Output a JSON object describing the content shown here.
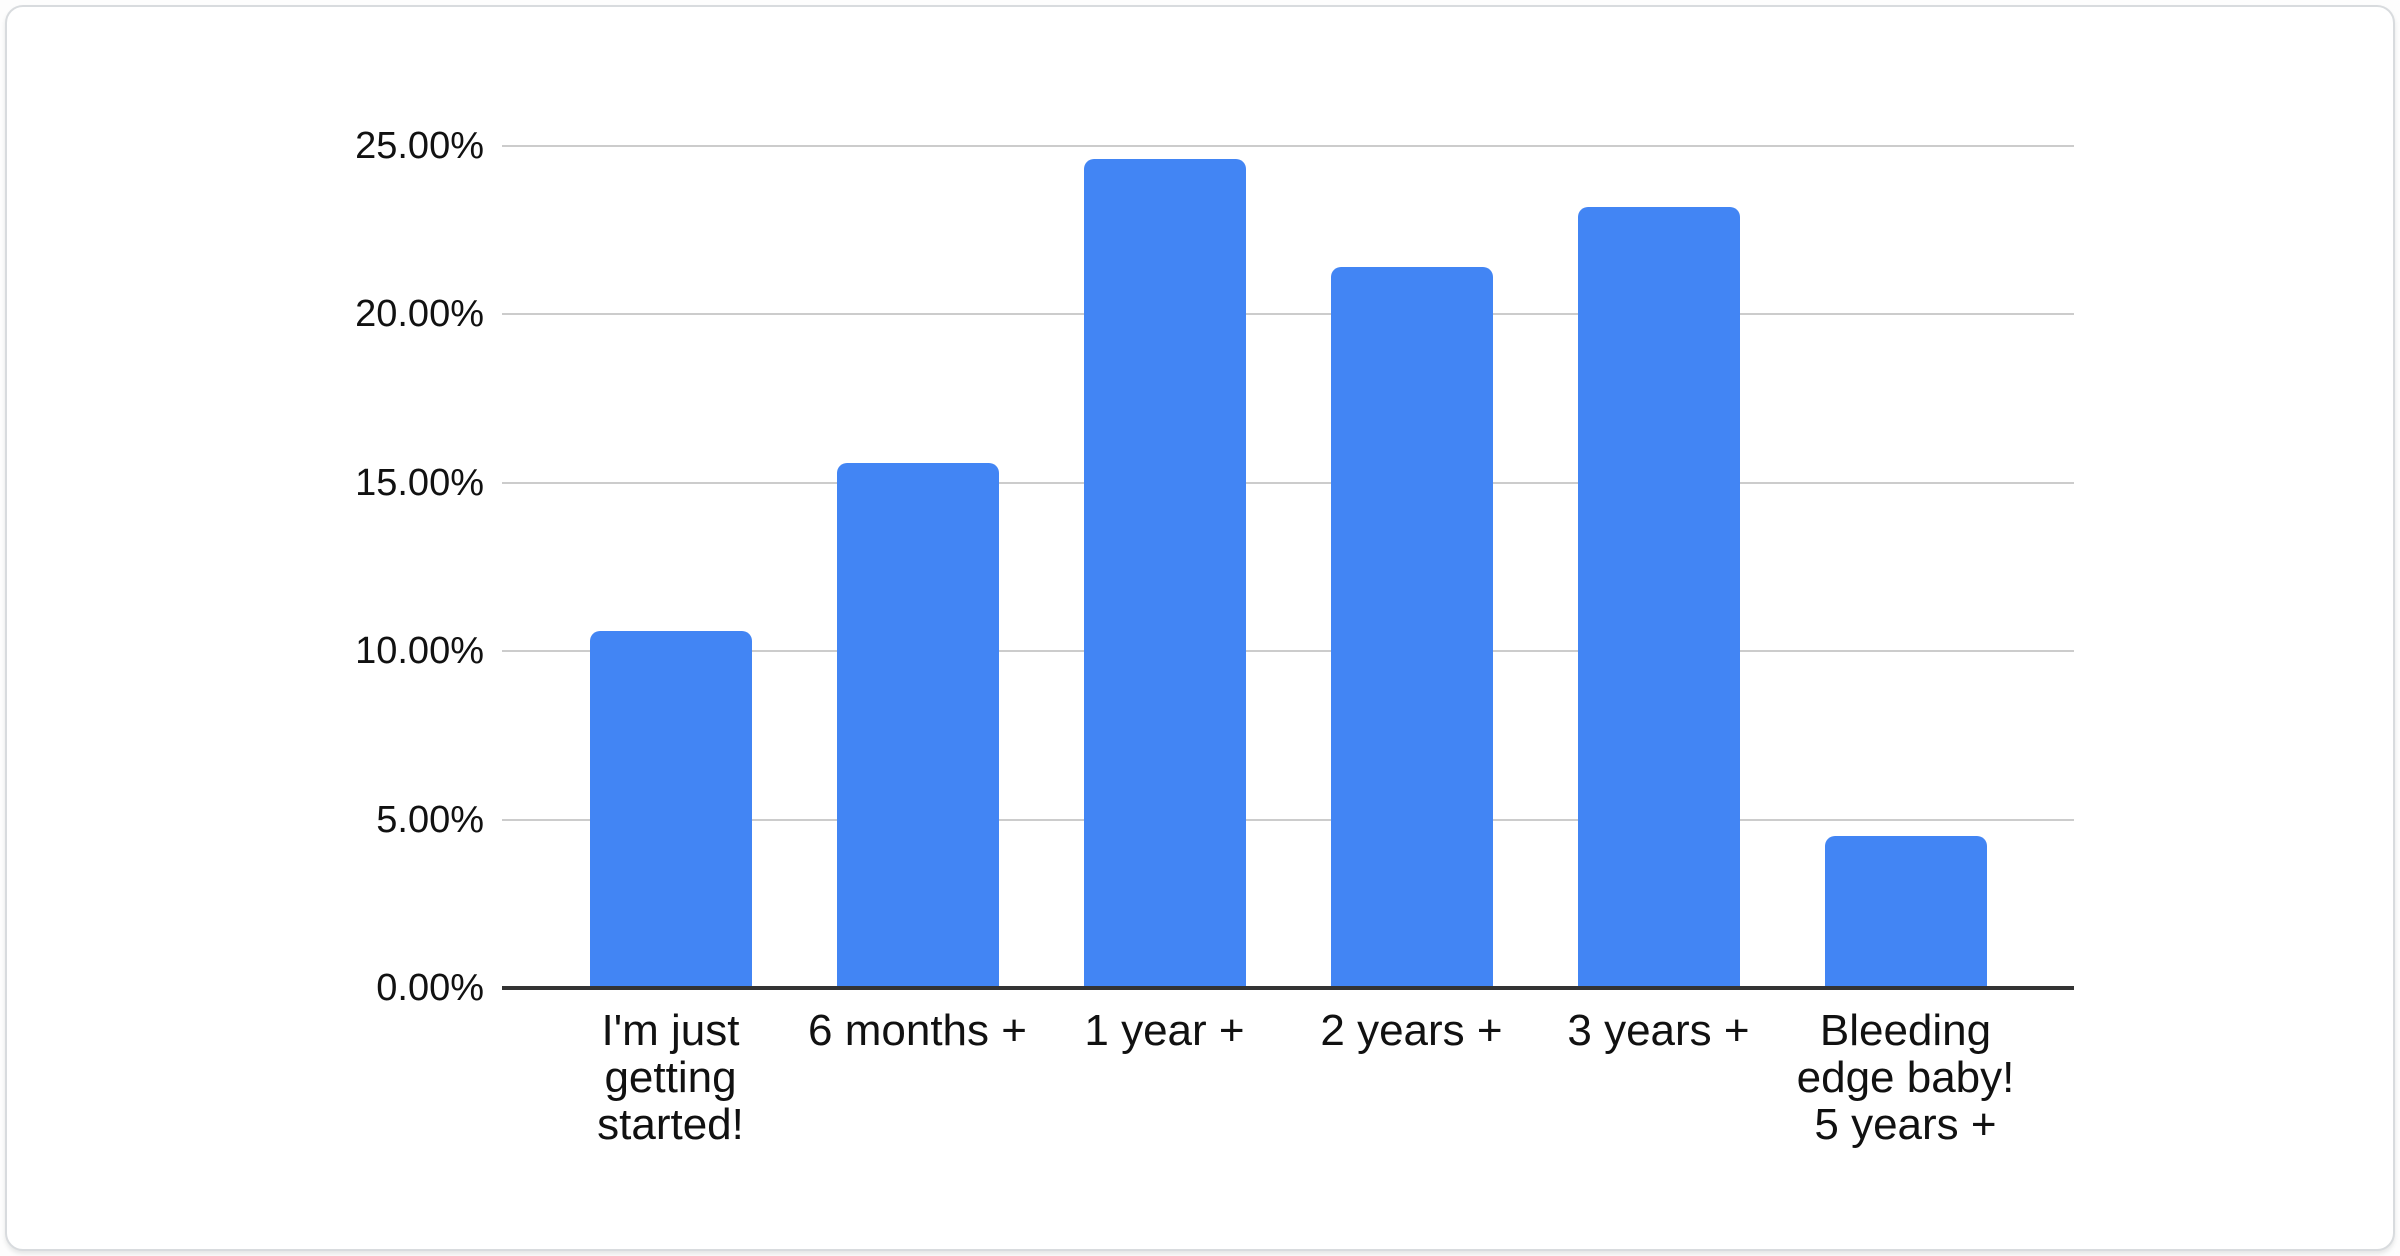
{
  "chart_data": {
    "type": "bar",
    "title": "",
    "xlabel": "",
    "ylabel": "",
    "legend": "none",
    "grid": true,
    "categories": [
      "I'm just getting started!",
      "6 months +",
      "1 year +",
      "2 years +",
      "3 years +",
      "Bleeding edge baby! 5 years +"
    ],
    "category_lines": [
      [
        "I'm just",
        "getting",
        "started!"
      ],
      [
        "6 months +"
      ],
      [
        "1 year +"
      ],
      [
        "2 years +"
      ],
      [
        "3 years +"
      ],
      [
        "Bleeding",
        "edge baby!",
        "5 years +"
      ]
    ],
    "values": [
      10.6,
      15.6,
      24.6,
      21.4,
      23.2,
      4.5
    ],
    "ylim": [
      0,
      25
    ],
    "y_ticks": [
      {
        "value": 0,
        "label": "0.00%"
      },
      {
        "value": 5,
        "label": "5.00%"
      },
      {
        "value": 10,
        "label": "10.00%"
      },
      {
        "value": 15,
        "label": "15.00%"
      },
      {
        "value": 20,
        "label": "20.00%"
      },
      {
        "value": 25,
        "label": "25.00%"
      }
    ],
    "colors": {
      "bar": "#4285f4",
      "gridline": "#cccccc",
      "baseline": "#333333",
      "text": "#111111",
      "card_background": "#ffffff",
      "card_border": "#d8dbde"
    }
  }
}
